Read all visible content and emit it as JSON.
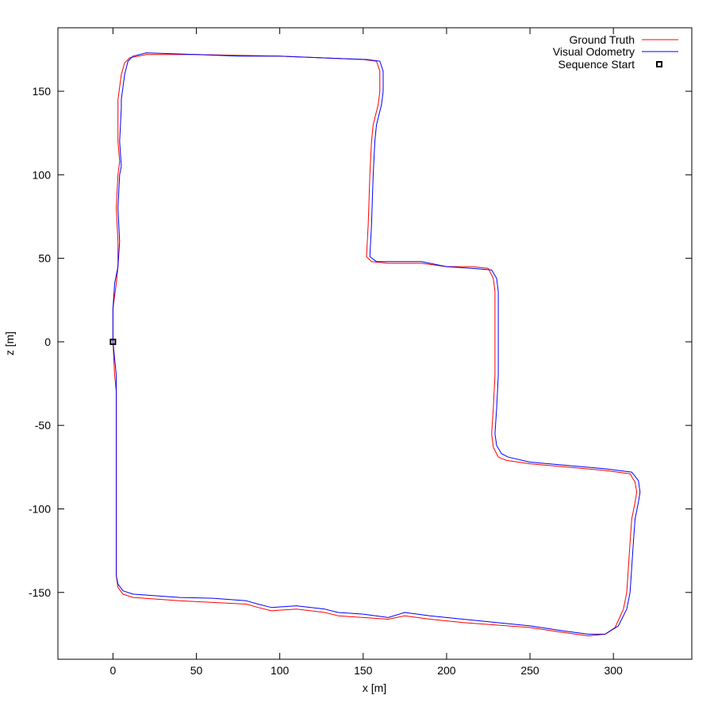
{
  "chart_data": {
    "type": "line",
    "title": "",
    "xlabel": "x [m]",
    "ylabel": "z [m]",
    "xlim": [
      -33,
      347
    ],
    "ylim": [
      -190,
      188
    ],
    "xticks": [
      0,
      50,
      100,
      150,
      200,
      250,
      300
    ],
    "yticks": [
      -150,
      -100,
      -50,
      0,
      50,
      100,
      150
    ],
    "grid": false,
    "legend_position": "top-right",
    "series": [
      {
        "name": "Ground Truth",
        "color": "#ff0000",
        "points": [
          [
            0,
            0
          ],
          [
            1,
            -20
          ],
          [
            2,
            -30
          ],
          [
            2,
            -80
          ],
          [
            2,
            -140
          ],
          [
            3,
            -147
          ],
          [
            6,
            -151
          ],
          [
            12,
            -153
          ],
          [
            40,
            -155
          ],
          [
            60,
            -156
          ],
          [
            80,
            -157
          ],
          [
            87,
            -159
          ],
          [
            95,
            -161
          ],
          [
            110,
            -160
          ],
          [
            127,
            -162
          ],
          [
            135,
            -164
          ],
          [
            150,
            -165
          ],
          [
            165,
            -166
          ],
          [
            175,
            -164
          ],
          [
            190,
            -166
          ],
          [
            210,
            -168
          ],
          [
            250,
            -171
          ],
          [
            270,
            -174
          ],
          [
            285,
            -176
          ],
          [
            295,
            -175
          ],
          [
            301,
            -171
          ],
          [
            306,
            -160
          ],
          [
            308,
            -150
          ],
          [
            310,
            -120
          ],
          [
            311,
            -106
          ],
          [
            313,
            -96
          ],
          [
            314,
            -90
          ],
          [
            313,
            -84
          ],
          [
            310,
            -79
          ],
          [
            295,
            -77
          ],
          [
            250,
            -73
          ],
          [
            236,
            -71
          ],
          [
            231,
            -69
          ],
          [
            228,
            -63
          ],
          [
            227,
            -55
          ],
          [
            228,
            -40
          ],
          [
            229,
            -20
          ],
          [
            229,
            0
          ],
          [
            229,
            20
          ],
          [
            229,
            30
          ],
          [
            228,
            38
          ],
          [
            225,
            44
          ],
          [
            215,
            45
          ],
          [
            200,
            45
          ],
          [
            185,
            47
          ],
          [
            165,
            47
          ],
          [
            155,
            48
          ],
          [
            152,
            51
          ],
          [
            153,
            70
          ],
          [
            154,
            100
          ],
          [
            155,
            120
          ],
          [
            156,
            130
          ],
          [
            159,
            142
          ],
          [
            160,
            150
          ],
          [
            160,
            162
          ],
          [
            158,
            168
          ],
          [
            150,
            169
          ],
          [
            125,
            170
          ],
          [
            100,
            171
          ],
          [
            75,
            171.5
          ],
          [
            50,
            172
          ],
          [
            20,
            172
          ],
          [
            10,
            170
          ],
          [
            7,
            167
          ],
          [
            5,
            160
          ],
          [
            3,
            145
          ],
          [
            3,
            140
          ],
          [
            3,
            120
          ],
          [
            4,
            108
          ],
          [
            3,
            100
          ],
          [
            2,
            80
          ],
          [
            3,
            60
          ],
          [
            3,
            45
          ],
          [
            2,
            35
          ],
          [
            0,
            20
          ],
          [
            0,
            0
          ]
        ]
      },
      {
        "name": "Visual Odometry",
        "color": "#0000ff",
        "points": [
          [
            0,
            0
          ],
          [
            2,
            -20
          ],
          [
            2,
            -30
          ],
          [
            2,
            -80
          ],
          [
            2,
            -140
          ],
          [
            3,
            -145
          ],
          [
            6,
            -149
          ],
          [
            12,
            -151
          ],
          [
            40,
            -153
          ],
          [
            60,
            -153.5
          ],
          [
            80,
            -155
          ],
          [
            87,
            -157
          ],
          [
            95,
            -159
          ],
          [
            110,
            -158
          ],
          [
            127,
            -160
          ],
          [
            135,
            -162
          ],
          [
            150,
            -163
          ],
          [
            165,
            -165
          ],
          [
            175,
            -162
          ],
          [
            190,
            -164
          ],
          [
            210,
            -166
          ],
          [
            250,
            -170
          ],
          [
            270,
            -173
          ],
          [
            285,
            -175
          ],
          [
            295,
            -175
          ],
          [
            303,
            -170
          ],
          [
            308,
            -160
          ],
          [
            310,
            -150
          ],
          [
            312,
            -120
          ],
          [
            313,
            -106
          ],
          [
            315,
            -96
          ],
          [
            316,
            -90
          ],
          [
            315,
            -83
          ],
          [
            311,
            -78
          ],
          [
            295,
            -76
          ],
          [
            250,
            -72
          ],
          [
            237,
            -69
          ],
          [
            233,
            -67
          ],
          [
            230,
            -62
          ],
          [
            229,
            -55
          ],
          [
            230,
            -40
          ],
          [
            231,
            -20
          ],
          [
            231,
            0
          ],
          [
            231,
            20
          ],
          [
            231,
            30
          ],
          [
            230,
            38
          ],
          [
            227,
            43
          ],
          [
            215,
            44
          ],
          [
            200,
            45
          ],
          [
            185,
            48
          ],
          [
            165,
            48
          ],
          [
            158,
            48
          ],
          [
            154,
            51
          ],
          [
            155,
            70
          ],
          [
            156,
            100
          ],
          [
            157,
            120
          ],
          [
            158,
            130
          ],
          [
            161,
            142
          ],
          [
            162,
            150
          ],
          [
            162,
            162
          ],
          [
            160,
            168
          ],
          [
            152,
            169
          ],
          [
            125,
            170
          ],
          [
            100,
            171
          ],
          [
            75,
            171
          ],
          [
            50,
            172
          ],
          [
            20,
            173
          ],
          [
            12,
            171
          ],
          [
            9,
            168
          ],
          [
            7,
            160
          ],
          [
            5,
            145
          ],
          [
            5,
            140
          ],
          [
            4,
            120
          ],
          [
            5,
            105
          ],
          [
            4,
            100
          ],
          [
            3,
            80
          ],
          [
            4,
            60
          ],
          [
            3,
            45
          ],
          [
            1,
            35
          ],
          [
            0,
            20
          ],
          [
            0,
            0
          ]
        ]
      }
    ],
    "markers": [
      {
        "name": "Sequence Start",
        "x": 0,
        "y": 0,
        "shape": "square",
        "color": "#000000"
      }
    ]
  }
}
